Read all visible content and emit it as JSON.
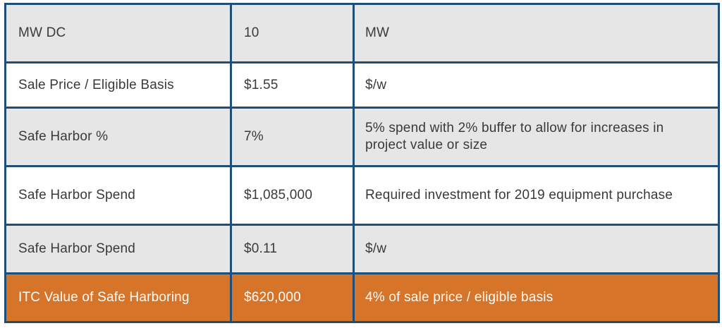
{
  "table": {
    "rows": [
      {
        "label": "MW DC",
        "value": "10",
        "note": "MW"
      },
      {
        "label": "Sale Price / Eligible Basis",
        "value": "$1.55",
        "note": "$/w"
      },
      {
        "label": "Safe Harbor %",
        "value": "7%",
        "note": "5% spend with 2% buffer to allow for increases in project value or size"
      },
      {
        "label": "Safe Harbor Spend",
        "value": "$1,085,000",
        "note": "Required investment for 2019 equipment purchase"
      },
      {
        "label": "Safe Harbor Spend",
        "value": "$0.11",
        "note": "$/w"
      },
      {
        "label": "ITC Value of Safe Harboring",
        "value": "$620,000",
        "note": "4% of sale price / eligible basis"
      }
    ]
  },
  "colors": {
    "border": "#1f4e79",
    "gray_row": "#e6e6e6",
    "white_row": "#ffffff",
    "highlight_row": "#d6742a"
  }
}
